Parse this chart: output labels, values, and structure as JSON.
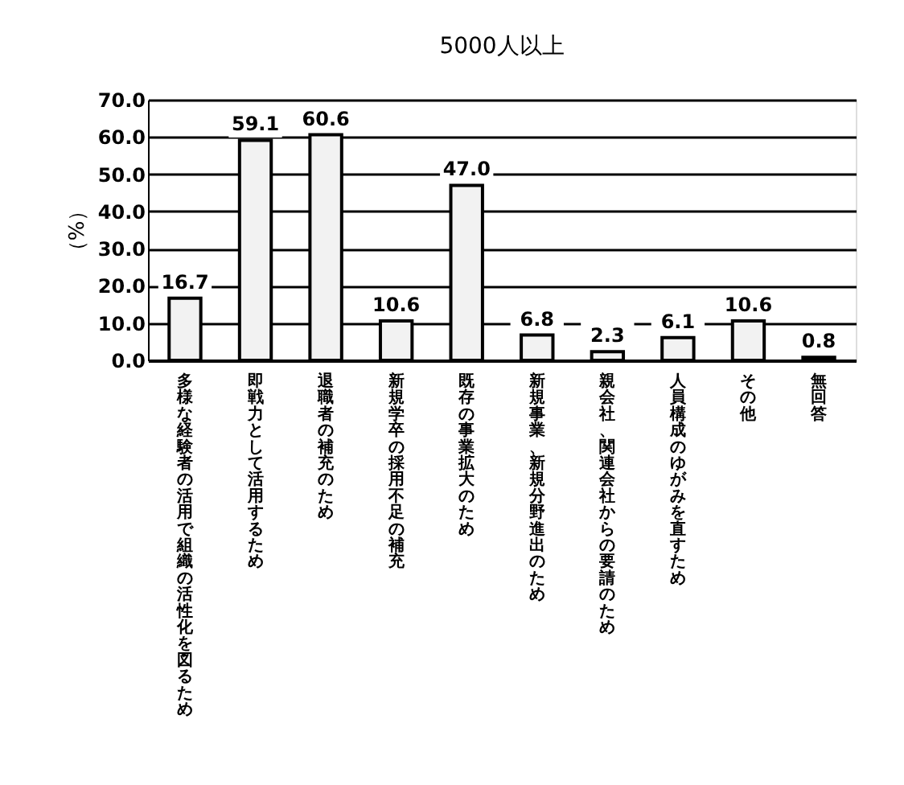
{
  "chart_data": {
    "type": "bar",
    "title": "5000人以上",
    "ylabel": "（%）",
    "categories": [
      "多様な経験者の活用で組織の活性化を図るため",
      "即戦力として活用するため",
      "退職者の補充のため",
      "新規学卒の採用不足の補充",
      "既存の事業拡大のため",
      "新規事業、新規分野進出のため",
      "親会社、関連会社からの要請のため",
      "人員構成のゆがみを直すため",
      "その他",
      "無回答"
    ],
    "values": [
      16.7,
      59.1,
      60.6,
      10.6,
      47.0,
      6.8,
      2.3,
      6.1,
      10.6,
      0.8
    ],
    "value_labels": [
      "16.7",
      "59.1",
      "60.6",
      "10.6",
      "47.0",
      "6.8",
      "2.3",
      "6.1",
      "10.6",
      "0.8"
    ],
    "color": "#f2f2f2",
    "ylim": [
      0,
      70
    ],
    "yticks": [
      {
        "value": 0,
        "label": "0.0"
      },
      {
        "value": 10,
        "label": "10.0"
      },
      {
        "value": 20,
        "label": "20.0"
      },
      {
        "value": 30,
        "label": "30.0"
      },
      {
        "value": 40,
        "label": "40.0"
      },
      {
        "value": 50,
        "label": "50.0"
      },
      {
        "value": 60,
        "label": "60.0"
      },
      {
        "value": 70,
        "label": "70.0"
      }
    ],
    "grid": "y",
    "legend": false
  }
}
